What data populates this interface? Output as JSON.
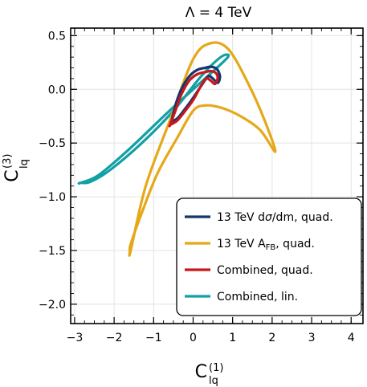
{
  "chart_data": {
    "type": "line",
    "title": "Λ = 4 TeV",
    "xlabel": {
      "main": "C",
      "sub": "lq",
      "sup": "(1)"
    },
    "ylabel": {
      "main": "C",
      "sub": "lq",
      "sup": "(3)"
    },
    "xlim": [
      -3.1,
      4.3
    ],
    "ylim": [
      -2.18,
      0.57
    ],
    "xticks": [
      -3,
      -2,
      -1,
      0,
      1,
      2,
      3,
      4
    ],
    "xtick_labels": [
      "−3",
      "−2",
      "−1",
      "0",
      "1",
      "2",
      "3",
      "4"
    ],
    "yticks": [
      0.5,
      0.0,
      -0.5,
      -1.0,
      -1.5,
      -2.0
    ],
    "ytick_labels": [
      "0.5",
      "0.0",
      "−0.5",
      "−1.0",
      "−1.5",
      "−2.0"
    ],
    "grid": true,
    "legend_position": "bottom-right",
    "series": [
      {
        "name": "13 TeV dσ/dm, quad.",
        "legend": {
          "pre": "13 TeV d",
          "sym": "σ",
          "post": "/dm, quad."
        },
        "color": "#14366b",
        "closed": true,
        "x": [
          -0.55,
          -0.45,
          -0.3,
          -0.1,
          0.1,
          0.3,
          0.45,
          0.6,
          0.68,
          0.62,
          0.5,
          0.38,
          0.2,
          0.0,
          -0.2,
          -0.4,
          -0.55
        ],
        "y": [
          -0.3,
          -0.15,
          0.0,
          0.12,
          0.18,
          0.2,
          0.21,
          0.19,
          0.12,
          0.06,
          0.1,
          0.12,
          0.03,
          -0.08,
          -0.18,
          -0.27,
          -0.3
        ]
      },
      {
        "name": "13 TeV AFB, quad.",
        "legend": {
          "pre": "13 TeV A",
          "sub": "FB",
          "post": ", quad."
        },
        "color": "#e6a818",
        "closed": true,
        "x": [
          -1.58,
          -1.2,
          -0.6,
          0.0,
          0.45,
          0.9,
          1.4,
          1.8,
          2.08,
          1.7,
          1.2,
          0.7,
          0.3,
          0.0,
          -0.4,
          -0.9,
          -1.3,
          -1.58,
          -1.6
        ],
        "y": [
          -1.5,
          -0.9,
          -0.3,
          0.28,
          0.43,
          0.37,
          0.05,
          -0.28,
          -0.58,
          -0.38,
          -0.25,
          -0.17,
          -0.15,
          -0.2,
          -0.45,
          -0.78,
          -1.15,
          -1.44,
          -1.5
        ]
      },
      {
        "name": "Combined, quad.",
        "legend": {
          "pre": "Combined, quad."
        },
        "color": "#c8161d",
        "closed": true,
        "x": [
          -0.58,
          -0.45,
          -0.3,
          -0.1,
          0.1,
          0.3,
          0.45,
          0.58,
          0.62,
          0.55,
          0.45,
          0.32,
          0.18,
          0.0,
          -0.2,
          -0.4,
          -0.58
        ],
        "y": [
          -0.33,
          -0.2,
          -0.05,
          0.08,
          0.14,
          0.16,
          0.17,
          0.15,
          0.1,
          0.05,
          0.08,
          0.1,
          0.02,
          -0.1,
          -0.2,
          -0.29,
          -0.33
        ]
      },
      {
        "name": "Combined, lin.",
        "legend": {
          "pre": "Combined, lin."
        },
        "color": "#12a0a5",
        "closed": true,
        "x": [
          -2.85,
          -2.4,
          -1.6,
          -0.6,
          0.3,
          0.88,
          0.7,
          0.2,
          -0.5,
          -1.3,
          -2.1,
          -2.6,
          -2.85
        ],
        "y": [
          -0.87,
          -0.8,
          -0.55,
          -0.2,
          0.1,
          0.3,
          0.3,
          0.12,
          -0.2,
          -0.5,
          -0.75,
          -0.86,
          -0.87
        ]
      }
    ]
  }
}
